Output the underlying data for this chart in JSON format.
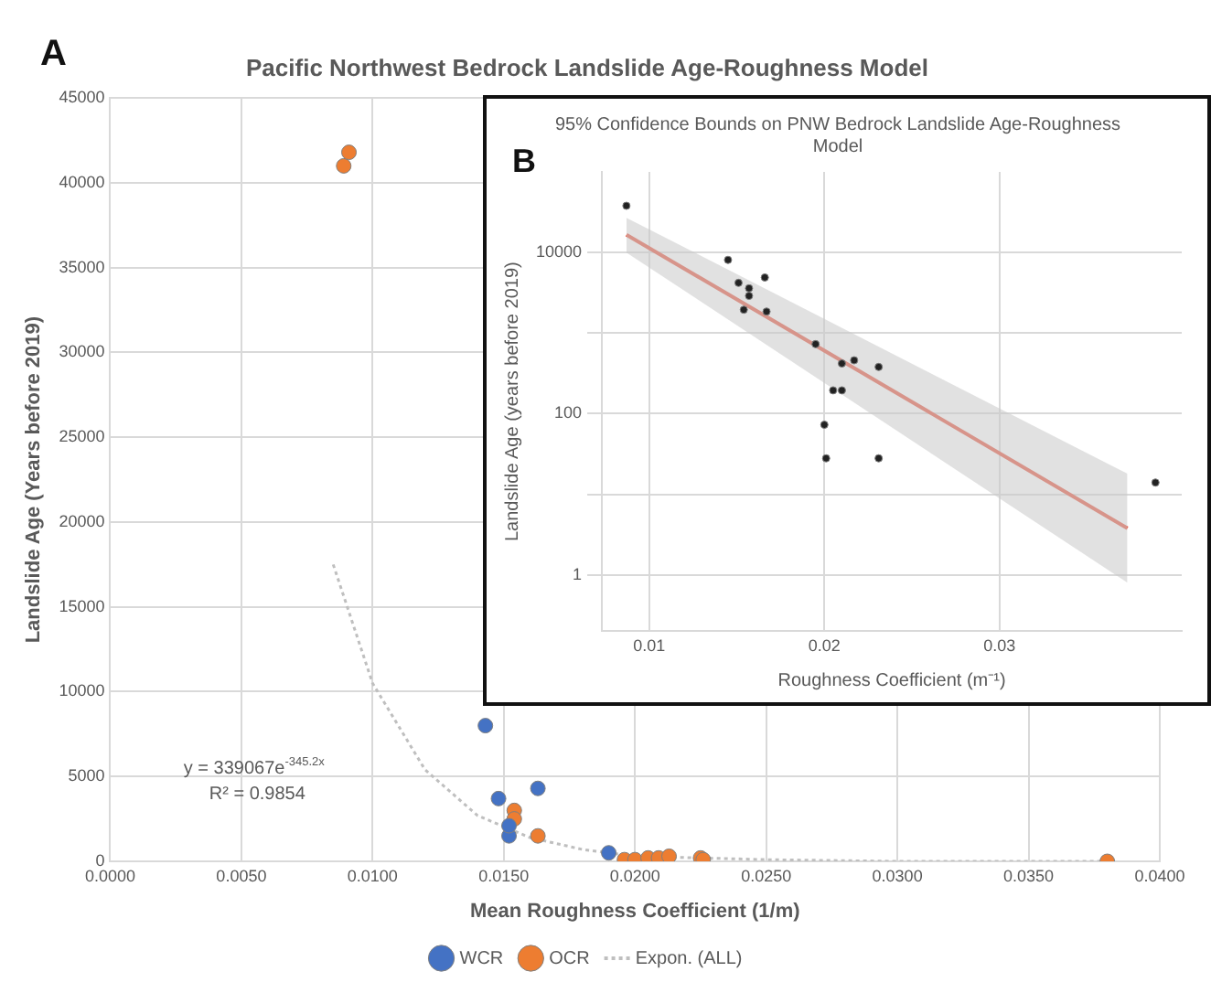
{
  "chart_data": [
    {
      "type": "scatter",
      "title": "Pacific Northwest Bedrock Landslide Age-Roughness Model",
      "xlabel": "Mean Roughness Coefficient (1/m)",
      "ylabel": "Landslide Age (Years before 2019)",
      "annotations": [
        "A",
        "y = 339067e$^{-345.2x}$",
        "R² = 0.9854"
      ],
      "xlim": [
        0,
        0.04
      ],
      "xticks": [
        {
          "value": 0,
          "label": "0.0000"
        },
        {
          "value": 0.005,
          "label": "0.0050"
        },
        {
          "value": 0.01,
          "label": "0.0100"
        },
        {
          "value": 0.015,
          "label": "0.0150"
        },
        {
          "value": 0.02,
          "label": "0.0200"
        },
        {
          "value": 0.025,
          "label": "0.0250"
        },
        {
          "value": 0.03,
          "label": "0.0300"
        },
        {
          "value": 0.035,
          "label": "0.0350"
        },
        {
          "value": 0.04,
          "label": "0.0400"
        }
      ],
      "ylim": [
        0,
        45000
      ],
      "yticks": [
        0,
        5000,
        10000,
        15000,
        20000,
        25000,
        30000,
        35000,
        40000,
        45000
      ],
      "grid": true,
      "legend": "bottom",
      "series": [
        {
          "name": "WCR",
          "color": "#4472c4",
          "marker": "circle",
          "x": [
            0.0143,
            0.0148,
            0.0152,
            0.0152,
            0.0163,
            0.019
          ],
          "values": [
            8000,
            3700,
            1500,
            2100,
            4300,
            500
          ]
        },
        {
          "name": "OCR",
          "color": "#ed7d31",
          "marker": "circle",
          "x": [
            0.0089,
            0.0091,
            0.0154,
            0.0154,
            0.0163,
            0.0196,
            0.02,
            0.0205,
            0.0209,
            0.0213,
            0.0225,
            0.0226,
            0.038
          ],
          "values": [
            41000,
            41800,
            3000,
            2500,
            1500,
            100,
            100,
            200,
            200,
            300,
            200,
            100,
            0
          ]
        },
        {
          "name": "Expon. (ALL)",
          "type": "line",
          "color": "#bfbfbf",
          "marker": "none",
          "line_style": "dotted",
          "x": [
            0.0085,
            0.01,
            0.012,
            0.014,
            0.016,
            0.018,
            0.02,
            0.025,
            0.03,
            0.038
          ],
          "values": [
            17500,
            10500,
            5400,
            2700,
            1400,
            700,
            300,
            100,
            0,
            0
          ]
        }
      ]
    },
    {
      "type": "scatter",
      "title": "95% Confidence Bounds on PNW Bedrock Landslide Age-Roughness Model",
      "xlabel": "Roughness Coefficient (m⁻¹)",
      "ylabel": "Landslide Age (years before 2019)",
      "annotations": [
        "B"
      ],
      "xlim": [
        0.0073,
        0.0404
      ],
      "xticks": [
        0.01,
        0.02,
        0.03
      ],
      "ylim": [
        0.2,
        100000
      ],
      "yticks": [
        1,
        {
          "value": 10,
          "label": null
        },
        100,
        {
          "value": 1000,
          "label": null
        },
        10000
      ],
      "log": "y",
      "grid": true,
      "series": [
        {
          "color": "#222222",
          "marker": "circle",
          "x": [
            0.0087,
            0.0145,
            0.0151,
            0.0157,
            0.0157,
            0.0166,
            0.0154,
            0.0167,
            0.0195,
            0.021,
            0.0217,
            0.0231,
            0.0205,
            0.021,
            0.02,
            0.0201,
            0.0231,
            0.0389
          ],
          "values": [
            38000,
            8100,
            4200,
            3600,
            2900,
            4900,
            1950,
            1850,
            730,
            420,
            460,
            380,
            195,
            195,
            73,
            28,
            28,
            14
          ]
        },
        {
          "type": "line",
          "color": "#e8553f",
          "marker": "none",
          "line_style": "solid",
          "x": [
            0.0087,
            0.0373
          ],
          "values": [
            16600,
            3.8
          ],
          "lower": [
            10000,
            0.8
          ],
          "upper": [
            27000,
            18
          ]
        }
      ]
    }
  ]
}
